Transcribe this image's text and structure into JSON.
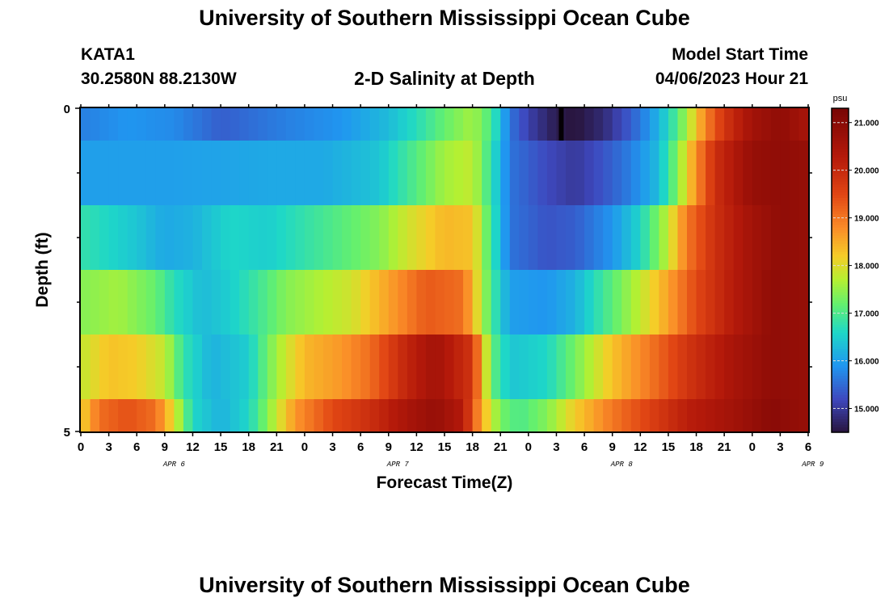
{
  "page": {
    "title_top": "University of Southern Mississippi Ocean Cube",
    "title_bottom": "University of Southern Mississippi Ocean Cube",
    "station": "KATA1",
    "coords": "30.2580N  88.2130W",
    "subtitle": "2-D Salinity at Depth",
    "model_start_label": "Model Start Time",
    "model_start_value": "04/06/2023 Hour 21"
  },
  "chart_data": {
    "type": "heatmap",
    "xlabel": "Forecast Time(Z)",
    "ylabel": "Depth (ft)",
    "x_tick_labels": [
      "0",
      "3",
      "6",
      "9",
      "12",
      "15",
      "18",
      "21",
      "0",
      "3",
      "6",
      "9",
      "12",
      "15",
      "18",
      "21",
      "0",
      "3",
      "6",
      "9",
      "12",
      "15",
      "18",
      "21",
      "0",
      "3",
      "6"
    ],
    "x_date_labels": [
      {
        "label": "APR 6",
        "hour": 10
      },
      {
        "label": "APR 7",
        "hour": 34
      },
      {
        "label": "APR 8",
        "hour": 58
      },
      {
        "label": "APR 9",
        "hour": 78.5
      }
    ],
    "x_range_hours": [
      0,
      78
    ],
    "y_range_ft": [
      0,
      5
    ],
    "y_tick_labels": [
      "0",
      "5"
    ],
    "y_minor_ticks_ft": [
      1,
      2,
      3,
      4
    ],
    "colorbar": {
      "unit": "psu",
      "range": [
        14.5,
        21.3
      ],
      "tick_labels": [
        "21.000",
        "20.000",
        "19.000",
        "18.000",
        "17.000",
        "16.000",
        "15.000"
      ],
      "tick_values": [
        21,
        20,
        19,
        18,
        17,
        16,
        15
      ]
    },
    "row_depth_bands_ft": [
      [
        0,
        0.5
      ],
      [
        0.5,
        1.5
      ],
      [
        1.5,
        2.5
      ],
      [
        2.5,
        3.5
      ],
      [
        3.5,
        4.5
      ],
      [
        4.5,
        5
      ]
    ],
    "salinity_keyframes": [
      [
        [
          0,
          15.7
        ],
        [
          5,
          15.9
        ],
        [
          10,
          15.8
        ],
        [
          15,
          15.4
        ],
        [
          22,
          15.7
        ],
        [
          28,
          15.9
        ],
        [
          33,
          16.3
        ],
        [
          36,
          16.7
        ],
        [
          39,
          17.2
        ],
        [
          42,
          17.6
        ],
        [
          44,
          17.0
        ],
        [
          46,
          15.6
        ],
        [
          48,
          15.1
        ],
        [
          51,
          14.6
        ],
        [
          53,
          14.5
        ],
        [
          56,
          14.8
        ],
        [
          59,
          15.4
        ],
        [
          61,
          15.9
        ],
        [
          63,
          16.6
        ],
        [
          65,
          17.6
        ],
        [
          67,
          18.9
        ],
        [
          69,
          19.8
        ],
        [
          72,
          20.6
        ],
        [
          75,
          20.9
        ],
        [
          78,
          20.5
        ]
      ],
      [
        [
          0,
          16.0
        ],
        [
          10,
          16.0
        ],
        [
          20,
          16.1
        ],
        [
          26,
          16.1
        ],
        [
          32,
          16.4
        ],
        [
          35,
          16.9
        ],
        [
          39,
          17.6
        ],
        [
          42,
          17.8
        ],
        [
          44,
          16.8
        ],
        [
          46,
          15.6
        ],
        [
          50,
          15.2
        ],
        [
          53,
          15.0
        ],
        [
          56,
          15.3
        ],
        [
          59,
          15.7
        ],
        [
          62,
          16.3
        ],
        [
          64,
          17.4
        ],
        [
          66,
          18.8
        ],
        [
          68,
          19.9
        ],
        [
          72,
          20.8
        ],
        [
          75,
          20.9
        ],
        [
          78,
          20.8
        ]
      ],
      [
        [
          0,
          16.8
        ],
        [
          3,
          16.6
        ],
        [
          6,
          16.4
        ],
        [
          9,
          16.1
        ],
        [
          12,
          16.2
        ],
        [
          16,
          16.6
        ],
        [
          20,
          16.5
        ],
        [
          24,
          16.8
        ],
        [
          28,
          17.1
        ],
        [
          32,
          17.4
        ],
        [
          35,
          17.9
        ],
        [
          39,
          18.4
        ],
        [
          42,
          18.3
        ],
        [
          44,
          16.9
        ],
        [
          46,
          15.6
        ],
        [
          50,
          15.3
        ],
        [
          53,
          15.4
        ],
        [
          57,
          15.9
        ],
        [
          60,
          16.6
        ],
        [
          63,
          17.8
        ],
        [
          65,
          19.0
        ],
        [
          68,
          19.9
        ],
        [
          72,
          20.6
        ],
        [
          75,
          20.9
        ],
        [
          78,
          20.8
        ]
      ],
      [
        [
          0,
          17.4
        ],
        [
          4,
          17.6
        ],
        [
          8,
          17.2
        ],
        [
          10,
          16.7
        ],
        [
          13,
          16.3
        ],
        [
          16,
          16.5
        ],
        [
          19,
          16.9
        ],
        [
          22,
          17.4
        ],
        [
          26,
          17.7
        ],
        [
          29,
          17.9
        ],
        [
          33,
          18.6
        ],
        [
          37,
          19.3
        ],
        [
          41,
          19.1
        ],
        [
          44,
          17.0
        ],
        [
          46,
          16.0
        ],
        [
          50,
          15.9
        ],
        [
          53,
          16.2
        ],
        [
          56,
          16.9
        ],
        [
          60,
          17.8
        ],
        [
          63,
          18.6
        ],
        [
          66,
          19.5
        ],
        [
          70,
          20.3
        ],
        [
          74,
          20.9
        ],
        [
          78,
          20.8
        ]
      ],
      [
        [
          0,
          17.8
        ],
        [
          3,
          18.3
        ],
        [
          6,
          18.2
        ],
        [
          9,
          17.8
        ],
        [
          11,
          16.8
        ],
        [
          14,
          16.2
        ],
        [
          18,
          16.5
        ],
        [
          21,
          17.6
        ],
        [
          24,
          18.4
        ],
        [
          28,
          18.7
        ],
        [
          31,
          19.1
        ],
        [
          35,
          20.1
        ],
        [
          38,
          20.6
        ],
        [
          42,
          19.8
        ],
        [
          44,
          17.2
        ],
        [
          46,
          16.4
        ],
        [
          50,
          16.6
        ],
        [
          53,
          17.3
        ],
        [
          57,
          18.3
        ],
        [
          61,
          19.0
        ],
        [
          65,
          19.8
        ],
        [
          70,
          20.5
        ],
        [
          74,
          20.9
        ],
        [
          78,
          20.8
        ]
      ],
      [
        [
          0,
          18.1
        ],
        [
          2,
          19.1
        ],
        [
          5,
          19.4
        ],
        [
          8,
          19.1
        ],
        [
          10,
          18.0
        ],
        [
          12,
          16.6
        ],
        [
          15,
          16.2
        ],
        [
          18,
          16.6
        ],
        [
          20,
          17.4
        ],
        [
          23,
          18.7
        ],
        [
          27,
          19.5
        ],
        [
          31,
          19.9
        ],
        [
          35,
          20.5
        ],
        [
          38,
          20.8
        ],
        [
          41,
          20.3
        ],
        [
          43,
          18.5
        ],
        [
          45,
          17.3
        ],
        [
          47,
          17.0
        ],
        [
          50,
          17.4
        ],
        [
          53,
          18.2
        ],
        [
          57,
          19.0
        ],
        [
          61,
          19.6
        ],
        [
          65,
          20.2
        ],
        [
          70,
          20.6
        ],
        [
          74,
          21.0
        ],
        [
          78,
          20.8
        ]
      ]
    ]
  }
}
